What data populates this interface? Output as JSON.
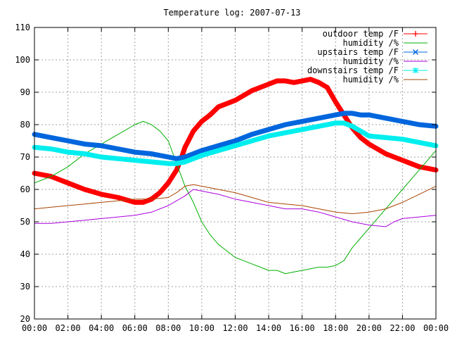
{
  "chart_data": {
    "type": "line",
    "title": "Temperature log: 2007-07-13",
    "xlabel": "",
    "ylabel": "",
    "x_ticks": [
      "00:00",
      "02:00",
      "04:00",
      "06:00",
      "08:00",
      "10:00",
      "12:00",
      "14:00",
      "16:00",
      "18:00",
      "20:00",
      "22:00",
      "00:00"
    ],
    "xlim_hours": [
      0,
      24
    ],
    "ylim": [
      20,
      110
    ],
    "y_ticks": [
      20,
      30,
      40,
      50,
      60,
      70,
      80,
      90,
      100,
      110
    ],
    "grid": true,
    "legend_position": "top-right",
    "series": [
      {
        "name": "outdoor temp /F",
        "color": "#ff0000",
        "thick": true,
        "x": [
          0,
          1,
          2,
          3,
          4,
          5,
          6,
          6.5,
          7,
          7.5,
          8,
          8.5,
          8.8,
          9,
          9.2,
          9.5,
          10,
          10.5,
          11,
          11.5,
          12,
          12.5,
          13,
          13.5,
          14,
          14.5,
          15,
          15.5,
          16,
          16.5,
          17,
          17.5,
          18,
          18.5,
          19,
          19.5,
          20,
          20.5,
          21,
          21.5,
          22,
          22.5,
          23,
          23.5,
          24
        ],
        "values": [
          65,
          64,
          62,
          60,
          58.5,
          57.5,
          56,
          56,
          57,
          59,
          62,
          66,
          70,
          73,
          75,
          78,
          81,
          83,
          85.5,
          86.5,
          87.5,
          89,
          90.5,
          91.5,
          92.5,
          93.5,
          93.5,
          93,
          93.5,
          94,
          93,
          91.5,
          87,
          83,
          79,
          76,
          74,
          72.5,
          71,
          70,
          69,
          68,
          67,
          66.5,
          66
        ]
      },
      {
        "name": "humidity /%",
        "color": "#00b000",
        "thick": false,
        "x": [
          0,
          1,
          2,
          3,
          4,
          5,
          6,
          6.5,
          7,
          7.5,
          8,
          8.5,
          9,
          9.5,
          10,
          10.5,
          11,
          11.5,
          12,
          12.5,
          13,
          13.5,
          14,
          14.5,
          15,
          15.5,
          16,
          16.5,
          17,
          17.5,
          18,
          18.5,
          19,
          19.5,
          20,
          20.5,
          21,
          21.5,
          22,
          22.5,
          23,
          23.5,
          24
        ],
        "values": [
          62,
          64,
          67,
          71,
          74,
          77,
          80,
          81,
          80,
          78,
          75,
          68,
          61,
          56,
          50,
          46,
          43,
          41,
          39,
          38,
          37,
          36,
          35,
          35,
          34,
          34.5,
          35,
          35.5,
          36,
          36,
          36.5,
          38,
          42,
          45,
          48,
          51,
          54,
          57,
          60,
          63,
          66,
          69,
          72
        ]
      },
      {
        "name": "upstairs temp /F",
        "color": "#0066dd",
        "thick": true,
        "x": [
          0,
          1,
          2,
          3,
          4,
          5,
          6,
          7,
          8,
          8.5,
          9,
          9.5,
          10,
          11,
          12,
          13,
          14,
          15,
          16,
          17,
          18,
          18.5,
          19,
          19.5,
          20,
          21,
          22,
          23,
          24
        ],
        "values": [
          77,
          76,
          75,
          74,
          73.5,
          72.5,
          71.5,
          71,
          70,
          69.5,
          70,
          71,
          72,
          73.5,
          75,
          77,
          78.5,
          80,
          81,
          82,
          83,
          83.5,
          83.5,
          83,
          83,
          82,
          81,
          80,
          79.5
        ]
      },
      {
        "name": "humidity /%",
        "color": "#aa00dd",
        "thick": false,
        "x": [
          0,
          1,
          2,
          3,
          4,
          5,
          6,
          7,
          8,
          8.5,
          9,
          9.5,
          10,
          10.5,
          11,
          12,
          13,
          14,
          15,
          16,
          17,
          18,
          19,
          20,
          21,
          21.5,
          22,
          23,
          24
        ],
        "values": [
          49.5,
          49.5,
          50,
          50.5,
          51,
          51.5,
          52,
          53,
          55,
          56.5,
          58,
          60,
          59.5,
          59,
          58.5,
          57,
          56,
          55,
          54,
          54,
          53,
          51.5,
          50,
          49,
          48.5,
          50,
          51,
          51.5,
          52
        ]
      },
      {
        "name": "downstairs temp /F",
        "color": "#00eeee",
        "thick": true,
        "x": [
          0,
          1,
          2,
          3,
          4,
          5,
          6,
          7,
          8,
          8.5,
          9,
          9.5,
          10,
          11,
          12,
          13,
          14,
          15,
          16,
          17,
          18,
          18.5,
          19,
          19.5,
          20,
          21,
          22,
          23,
          24
        ],
        "values": [
          73,
          72.5,
          71.5,
          71,
          70,
          69.5,
          69,
          68.5,
          68,
          68,
          68.5,
          69.5,
          70.5,
          72,
          73.5,
          75,
          76.5,
          77.5,
          78.5,
          79.5,
          80.5,
          80.5,
          79.5,
          78,
          76.5,
          76,
          75.5,
          74.5,
          73.5
        ]
      },
      {
        "name": "humidity /%",
        "color": "#aa4400",
        "thick": false,
        "x": [
          0,
          1,
          2,
          3,
          4,
          5,
          6,
          7,
          8,
          8.5,
          9,
          9.5,
          10,
          11,
          12,
          13,
          14,
          15,
          16,
          17,
          18,
          19,
          20,
          21,
          22,
          23,
          24
        ],
        "values": [
          54,
          54.5,
          55,
          55.5,
          56,
          56.5,
          57,
          57,
          57.5,
          59,
          61,
          61.5,
          61,
          60,
          59,
          57.5,
          56,
          55.5,
          55,
          54,
          53,
          52.5,
          53,
          54,
          56,
          58.5,
          61
        ]
      }
    ]
  }
}
